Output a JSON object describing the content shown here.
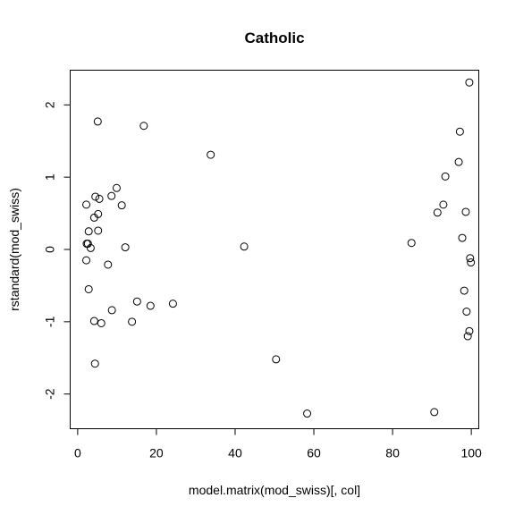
{
  "chart_data": {
    "type": "scatter",
    "title": "Catholic",
    "xlabel": "model.matrix(mod_swiss)[, col]",
    "ylabel": "rstandard(mod_swiss)",
    "xlim": [
      -1.9,
      101.9
    ],
    "ylim": [
      -2.48,
      2.48
    ],
    "xticks": [
      0,
      20,
      40,
      60,
      80,
      100
    ],
    "yticks": [
      -2,
      -1,
      0,
      1,
      2
    ],
    "xtick_labels": [
      "0",
      "20",
      "40",
      "60",
      "80",
      "100"
    ],
    "ytick_labels": [
      "-2",
      "-1",
      "0",
      "1",
      "2"
    ],
    "grid": false,
    "legend": "none",
    "marker": "open-circle",
    "points": [
      {
        "x": 5.1,
        "y": 1.77
      },
      {
        "x": 16.8,
        "y": 1.71
      },
      {
        "x": 33.8,
        "y": 1.31
      },
      {
        "x": 2.2,
        "y": 0.62
      },
      {
        "x": 4.5,
        "y": 0.73
      },
      {
        "x": 5.5,
        "y": 0.7
      },
      {
        "x": 4.2,
        "y": 0.44
      },
      {
        "x": 5.2,
        "y": 0.49
      },
      {
        "x": 8.6,
        "y": 0.74
      },
      {
        "x": 9.9,
        "y": 0.85
      },
      {
        "x": 11.2,
        "y": 0.61
      },
      {
        "x": 2.8,
        "y": 0.25
      },
      {
        "x": 5.2,
        "y": 0.26
      },
      {
        "x": 2.3,
        "y": 0.08
      },
      {
        "x": 2.6,
        "y": 0.08
      },
      {
        "x": 3.3,
        "y": 0.02
      },
      {
        "x": 12.1,
        "y": 0.03
      },
      {
        "x": 2.2,
        "y": -0.15
      },
      {
        "x": 7.7,
        "y": -0.21
      },
      {
        "x": 2.8,
        "y": -0.55
      },
      {
        "x": 15.1,
        "y": -0.72
      },
      {
        "x": 18.5,
        "y": -0.78
      },
      {
        "x": 24.2,
        "y": -0.75
      },
      {
        "x": 8.7,
        "y": -0.84
      },
      {
        "x": 4.2,
        "y": -0.99
      },
      {
        "x": 6.0,
        "y": -1.02
      },
      {
        "x": 13.8,
        "y": -1.0
      },
      {
        "x": 4.4,
        "y": -1.58
      },
      {
        "x": 42.3,
        "y": 0.04
      },
      {
        "x": 50.4,
        "y": -1.52
      },
      {
        "x": 58.3,
        "y": -2.27
      },
      {
        "x": 84.8,
        "y": 0.09
      },
      {
        "x": 90.6,
        "y": -2.25
      },
      {
        "x": 91.4,
        "y": 0.51
      },
      {
        "x": 92.9,
        "y": 0.62
      },
      {
        "x": 93.4,
        "y": 1.01
      },
      {
        "x": 96.8,
        "y": 1.21
      },
      {
        "x": 97.1,
        "y": 1.63
      },
      {
        "x": 97.7,
        "y": 0.16
      },
      {
        "x": 98.6,
        "y": 0.52
      },
      {
        "x": 98.2,
        "y": -0.57
      },
      {
        "x": 98.8,
        "y": -0.86
      },
      {
        "x": 99.1,
        "y": -1.2
      },
      {
        "x": 99.5,
        "y": -1.13
      },
      {
        "x": 99.5,
        "y": 2.31
      },
      {
        "x": 99.7,
        "y": -0.12
      },
      {
        "x": 99.9,
        "y": -0.18
      }
    ]
  }
}
